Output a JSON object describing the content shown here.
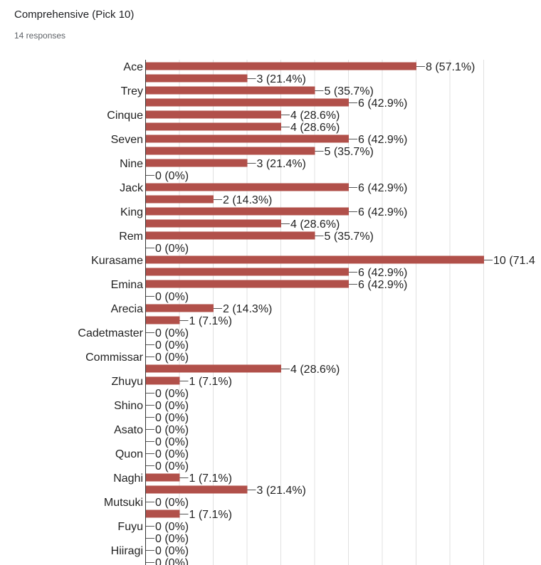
{
  "question": {
    "title": "Comprehensive (Pick 10)",
    "responses": "14 responses"
  },
  "colors": {
    "bar": "#b1504a",
    "grid": "#e0e0e0"
  },
  "chart_data": {
    "type": "bar",
    "orientation": "horizontal",
    "title": "",
    "xlabel": "",
    "ylabel": "",
    "xlim": [
      0,
      10
    ],
    "grid": true,
    "categories": [
      "Ace",
      "",
      "Trey",
      "",
      "Cinque",
      "",
      "Seven",
      "",
      "Nine",
      "",
      "Jack",
      "",
      "King",
      "",
      "Rem",
      "",
      "Kurasame",
      "",
      "Emina",
      "",
      "Arecia",
      "",
      "Cadetmaster",
      "",
      "Commissar",
      "",
      "Zhuyu",
      "",
      "Shino",
      "",
      "Asato",
      "",
      "Quon",
      "",
      "Naghi",
      "",
      "Mutsuki",
      "",
      "Fuyu",
      "",
      "Hiiragi",
      ""
    ],
    "values": [
      8,
      3,
      5,
      6,
      4,
      4,
      6,
      5,
      3,
      0,
      6,
      2,
      6,
      4,
      5,
      0,
      10,
      6,
      6,
      0,
      2,
      1,
      0,
      0,
      0,
      4,
      1,
      0,
      0,
      0,
      0,
      0,
      0,
      0,
      1,
      3,
      0,
      1,
      0,
      0,
      0,
      0
    ],
    "data_labels": [
      "8 (57.1%)",
      "3 (21.4%)",
      "5 (35.7%)",
      "6 (42.9%)",
      "4 (28.6%)",
      "4 (28.6%)",
      "6 (42.9%)",
      "5 (35.7%)",
      "3 (21.4%)",
      "0 (0%)",
      "6 (42.9%)",
      "2 (14.3%)",
      "6 (42.9%)",
      "4 (28.6%)",
      "5 (35.7%)",
      "0 (0%)",
      "10 (71.4",
      "6 (42.9%)",
      "6 (42.9%)",
      "0 (0%)",
      "2 (14.3%)",
      "1 (7.1%)",
      "0 (0%)",
      "0 (0%)",
      "0 (0%)",
      "4 (28.6%)",
      "1 (7.1%)",
      "0 (0%)",
      "0 (0%)",
      "0 (0%)",
      "0 (0%)",
      "0 (0%)",
      "0 (0%)",
      "0 (0%)",
      "1 (7.1%)",
      "3 (21.4%)",
      "0 (0%)",
      "1 (7.1%)",
      "0 (0%)",
      "0 (0%)",
      "0 (0%)",
      "0 (0%)"
    ]
  }
}
